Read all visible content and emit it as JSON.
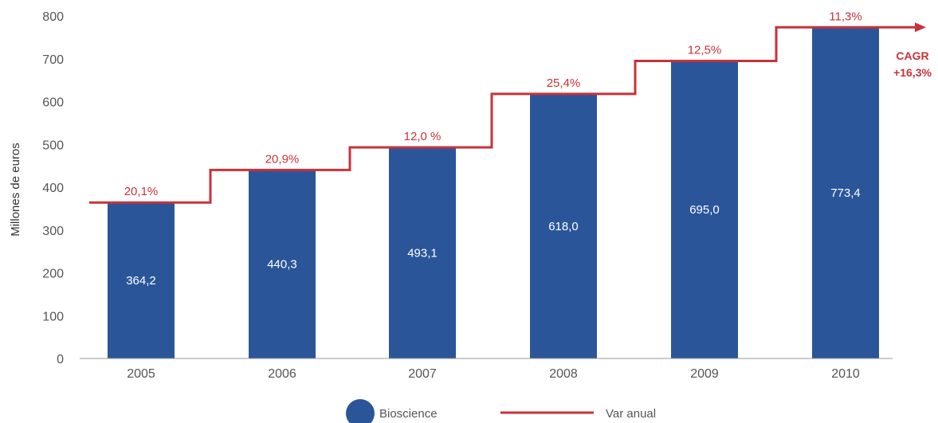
{
  "chart_data": {
    "type": "bar",
    "categories": [
      "2005",
      "2006",
      "2007",
      "2008",
      "2009",
      "2010"
    ],
    "series": [
      {
        "name": "Bioscience",
        "values": [
          364.2,
          440.3,
          493.1,
          618.0,
          695.0,
          773.4
        ],
        "value_labels": [
          "364,2",
          "440,3",
          "493,1",
          "618,0",
          "695,0",
          "773,4"
        ],
        "color": "#2a5699"
      },
      {
        "name": "Var anual",
        "type": "step",
        "values": [
          20.1,
          20.9,
          12.0,
          25.4,
          12.5,
          11.3
        ],
        "value_labels": [
          "20,1%",
          "20,9%",
          "12,0 %",
          "25,4%",
          "12,5%",
          "11,3%"
        ],
        "color": "#c8323a"
      }
    ],
    "ylabel": "Millones de euros",
    "ylim": [
      0,
      800
    ],
    "yticks": [
      0,
      100,
      200,
      300,
      400,
      500,
      600,
      700,
      800
    ],
    "ytick_labels": [
      "0",
      "100",
      "200",
      "300",
      "400",
      "500",
      "600",
      "700",
      "800"
    ],
    "annotation": {
      "line1": "CAGR",
      "line2": "+16,3%"
    },
    "legend": {
      "position": "bottom",
      "bar_label": "Bioscience",
      "line_label": "Var anual"
    },
    "grid": false
  }
}
